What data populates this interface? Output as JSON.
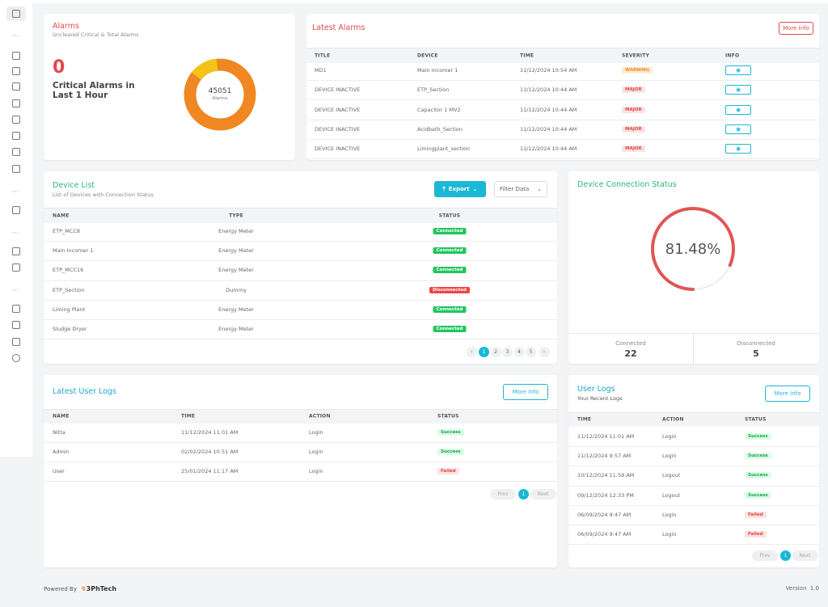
{
  "alarms": {
    "title": "Alarms",
    "subtitle": "Uncleared Critical & Total Alarms",
    "critical_count": 0,
    "critical_label": "Critical Alarms in Last 1 Hour",
    "total": 45051,
    "total_label": "Alarms"
  },
  "latest_alarms": {
    "title": "Latest Alarms",
    "button": "More Info",
    "columns": [
      "TITLE",
      "DEVICE",
      "TIME",
      "SEVERITY",
      "INFO"
    ],
    "rows": [
      [
        "MD1",
        "Main Incomer 1",
        "11/12/2024 10:54 AM",
        "WARNING"
      ],
      [
        "DEVICE INACTIVE",
        "ETP_Section",
        "11/12/2024 10:44 AM",
        "MAJOR"
      ],
      [
        "DEVICE INACTIVE",
        "Capacitor 1 MV2",
        "11/12/2024 10:44 AM",
        "MAJOR"
      ],
      [
        "DEVICE INACTIVE",
        "Acidbath_Section",
        "11/12/2024 10:44 AM",
        "MAJOR"
      ],
      [
        "DEVICE INACTIVE",
        "Limingplant_section",
        "11/12/2024 10:44 AM",
        "MAJOR"
      ]
    ],
    "badge_colors": {
      "WARNING": {
        "bg": "#fdebd3",
        "fg": "#f08a24"
      },
      "MAJOR": {
        "bg": "#fde2e2",
        "fg": "#e04545"
      }
    }
  },
  "device_list": {
    "title": "Device List",
    "subtitle": "List of Devices with Connection Status",
    "export": "Export",
    "filter": "Filter Data",
    "columns": [
      "NAME",
      "TYPE",
      "STATUS"
    ],
    "rows": [
      [
        "ETP_MCC8",
        "Energy Meter",
        "Connected"
      ],
      [
        "Main Incomer 1",
        "Energy Meter",
        "Connected"
      ],
      [
        "ETP_MCC16",
        "Energy Meter",
        "Connected"
      ],
      [
        "ETP_Section",
        "Dummy",
        "Disconnected"
      ],
      [
        "Liming Plant",
        "Energy Meter",
        "Connected"
      ],
      [
        "Sludge Dryer",
        "Energy Meter",
        "Connected"
      ]
    ],
    "badge_colors": {
      "Connected": {
        "bg": "#22c55e",
        "fg": "#ffffff"
      },
      "Disconnected": {
        "bg": "#ef4444",
        "fg": "#ffffff"
      }
    },
    "pages": [
      1,
      2,
      3,
      4,
      5
    ]
  },
  "connection_status": {
    "title": "Device Connection Status",
    "gauge_label": "81.48%",
    "connected_label": "Connected",
    "connected": 22,
    "disconnected_label": "Disconnected",
    "disconnected": 5
  },
  "latest_user_logs": {
    "title": "Latest User Logs",
    "button": "More Info",
    "columns": [
      "NAME",
      "TIME",
      "ACTION",
      "STATUS"
    ],
    "rows": [
      [
        "Nitta",
        "11/12/2024 11:01 AM",
        "Login",
        "Success"
      ],
      [
        "Admin",
        "02/02/2024 10:51 AM",
        "Login",
        "Success"
      ],
      [
        "User",
        "25/01/2024 11:17 AM",
        "Login",
        "Failed"
      ]
    ],
    "badge_colors": {
      "Success": {
        "bg": "#dcfce7",
        "fg": "#16a34a"
      },
      "Failed": {
        "bg": "#fde2e2",
        "fg": "#e04545"
      }
    },
    "prev": "Prev",
    "pages": [
      1
    ],
    "next": "Next"
  },
  "user_logs": {
    "title": "User Logs",
    "subtitle": "Your Recent Logs",
    "button": "More Info",
    "columns": [
      "TIME",
      "ACTION",
      "STATUS"
    ],
    "rows": [
      [
        "11/12/2024 11:01 AM",
        "Login",
        "Success"
      ],
      [
        "11/12/2024 9:57 AM",
        "Login",
        "Success"
      ],
      [
        "10/12/2024 11:58 AM",
        "Logout",
        "Success"
      ],
      [
        "09/12/2024 12:33 PM",
        "Logout",
        "Success"
      ],
      [
        "06/09/2024 9:47 AM",
        "Login",
        "Failed"
      ],
      [
        "06/09/2024 9:47 AM",
        "Login",
        "Failed"
      ]
    ],
    "badge_colors": {
      "Success": {
        "bg": "#dcfce7",
        "fg": "#16a34a"
      },
      "Failed": {
        "bg": "#fde2e2",
        "fg": "#e04545"
      }
    },
    "prev": "Prev",
    "pages": [
      1
    ],
    "next": "Next"
  },
  "footer": {
    "powered_by": "Powered By",
    "brand": "3PhTech",
    "version_label": "Version",
    "version": "1.0"
  }
}
